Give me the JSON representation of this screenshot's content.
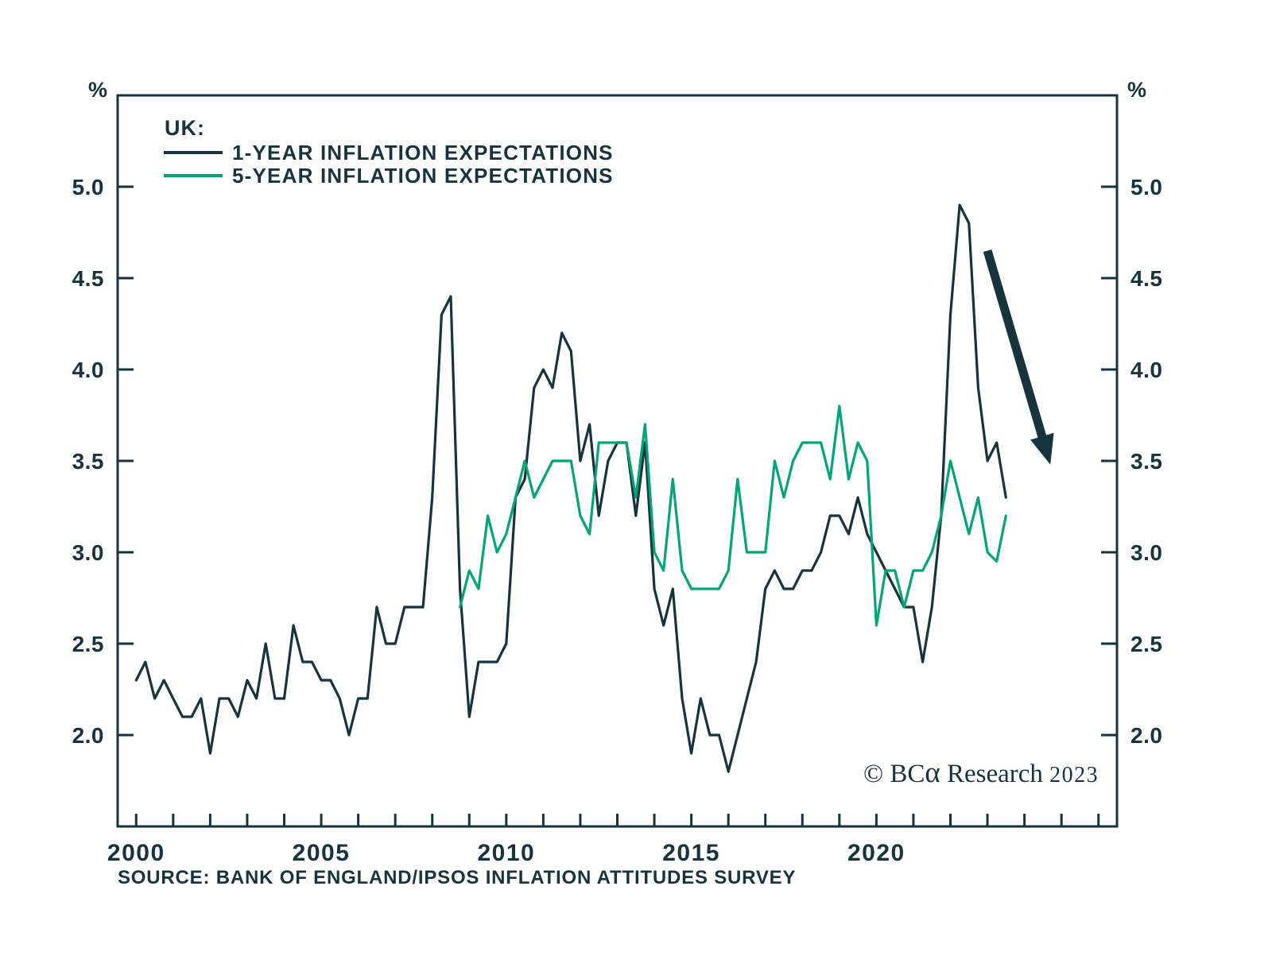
{
  "colors": {
    "ink": "#16333e",
    "green": "#00a478"
  },
  "chart_data": {
    "type": "line",
    "title": "UK:",
    "y_unit": "%",
    "grid": false,
    "legend_position": "top-left-inside",
    "xlim": [
      1999.5,
      2026.5
    ],
    "ylim": [
      1.5,
      5.5
    ],
    "yticks": [
      {
        "label": "2.0",
        "value": 2.0
      },
      {
        "label": "2.5",
        "value": 2.5
      },
      {
        "label": "3.0",
        "value": 3.0
      },
      {
        "label": "3.5",
        "value": 3.5
      },
      {
        "label": "4.0",
        "value": 4.0
      },
      {
        "label": "4.5",
        "value": 4.5
      },
      {
        "label": "5.0",
        "value": 5.0
      }
    ],
    "xticks_minor": {
      "start": 2000,
      "end": 2026,
      "step": 1
    },
    "xticks_labeled": [
      {
        "label": "2000",
        "value": 2000
      },
      {
        "label": "2005",
        "value": 2005
      },
      {
        "label": "2010",
        "value": 2010
      },
      {
        "label": "2015",
        "value": 2015
      },
      {
        "label": "2020",
        "value": 2020
      }
    ],
    "series": [
      {
        "name": "1-YEAR INFLATION EXPECTATIONS",
        "color": "#16333e",
        "points": [
          [
            2000.0,
            2.3
          ],
          [
            2000.25,
            2.4
          ],
          [
            2000.5,
            2.2
          ],
          [
            2000.75,
            2.3
          ],
          [
            2001.0,
            2.2
          ],
          [
            2001.25,
            2.1
          ],
          [
            2001.5,
            2.1
          ],
          [
            2001.75,
            2.2
          ],
          [
            2002.0,
            1.9
          ],
          [
            2002.25,
            2.2
          ],
          [
            2002.5,
            2.2
          ],
          [
            2002.75,
            2.1
          ],
          [
            2003.0,
            2.3
          ],
          [
            2003.25,
            2.2
          ],
          [
            2003.5,
            2.5
          ],
          [
            2003.75,
            2.2
          ],
          [
            2004.0,
            2.2
          ],
          [
            2004.25,
            2.6
          ],
          [
            2004.5,
            2.4
          ],
          [
            2004.75,
            2.4
          ],
          [
            2005.0,
            2.3
          ],
          [
            2005.25,
            2.3
          ],
          [
            2005.5,
            2.2
          ],
          [
            2005.75,
            2.0
          ],
          [
            2006.0,
            2.2
          ],
          [
            2006.25,
            2.2
          ],
          [
            2006.5,
            2.7
          ],
          [
            2006.75,
            2.5
          ],
          [
            2007.0,
            2.5
          ],
          [
            2007.25,
            2.7
          ],
          [
            2007.5,
            2.7
          ],
          [
            2007.75,
            2.7
          ],
          [
            2008.0,
            3.3
          ],
          [
            2008.25,
            4.3
          ],
          [
            2008.5,
            4.4
          ],
          [
            2008.75,
            2.8
          ],
          [
            2009.0,
            2.1
          ],
          [
            2009.25,
            2.4
          ],
          [
            2009.5,
            2.4
          ],
          [
            2009.75,
            2.4
          ],
          [
            2010.0,
            2.5
          ],
          [
            2010.25,
            3.3
          ],
          [
            2010.5,
            3.4
          ],
          [
            2010.75,
            3.9
          ],
          [
            2011.0,
            4.0
          ],
          [
            2011.25,
            3.9
          ],
          [
            2011.5,
            4.2
          ],
          [
            2011.75,
            4.1
          ],
          [
            2012.0,
            3.5
          ],
          [
            2012.25,
            3.7
          ],
          [
            2012.5,
            3.2
          ],
          [
            2012.75,
            3.5
          ],
          [
            2013.0,
            3.6
          ],
          [
            2013.25,
            3.6
          ],
          [
            2013.5,
            3.2
          ],
          [
            2013.75,
            3.6
          ],
          [
            2014.0,
            2.8
          ],
          [
            2014.25,
            2.6
          ],
          [
            2014.5,
            2.8
          ],
          [
            2014.75,
            2.2
          ],
          [
            2015.0,
            1.9
          ],
          [
            2015.25,
            2.2
          ],
          [
            2015.5,
            2.0
          ],
          [
            2015.75,
            2.0
          ],
          [
            2016.0,
            1.8
          ],
          [
            2016.25,
            2.0
          ],
          [
            2016.5,
            2.2
          ],
          [
            2016.75,
            2.4
          ],
          [
            2017.0,
            2.8
          ],
          [
            2017.25,
            2.9
          ],
          [
            2017.5,
            2.8
          ],
          [
            2017.75,
            2.8
          ],
          [
            2018.0,
            2.9
          ],
          [
            2018.25,
            2.9
          ],
          [
            2018.5,
            3.0
          ],
          [
            2018.75,
            3.2
          ],
          [
            2019.0,
            3.2
          ],
          [
            2019.25,
            3.1
          ],
          [
            2019.5,
            3.3
          ],
          [
            2019.75,
            3.1
          ],
          [
            2020.0,
            3.0
          ],
          [
            2020.25,
            2.9
          ],
          [
            2020.5,
            2.8
          ],
          [
            2020.75,
            2.7
          ],
          [
            2021.0,
            2.7
          ],
          [
            2021.25,
            2.4
          ],
          [
            2021.5,
            2.7
          ],
          [
            2021.75,
            3.2
          ],
          [
            2022.0,
            4.3
          ],
          [
            2022.25,
            4.9
          ],
          [
            2022.5,
            4.8
          ],
          [
            2022.75,
            3.9
          ],
          [
            2023.0,
            3.5
          ],
          [
            2023.25,
            3.6
          ],
          [
            2023.5,
            3.3
          ]
        ]
      },
      {
        "name": "5-YEAR INFLATION EXPECTATIONS",
        "color": "#00a478",
        "points": [
          [
            2008.75,
            2.7
          ],
          [
            2009.0,
            2.9
          ],
          [
            2009.25,
            2.8
          ],
          [
            2009.5,
            3.2
          ],
          [
            2009.75,
            3.0
          ],
          [
            2010.0,
            3.1
          ],
          [
            2010.25,
            3.3
          ],
          [
            2010.5,
            3.5
          ],
          [
            2010.75,
            3.3
          ],
          [
            2011.0,
            3.4
          ],
          [
            2011.25,
            3.5
          ],
          [
            2011.5,
            3.5
          ],
          [
            2011.75,
            3.5
          ],
          [
            2012.0,
            3.2
          ],
          [
            2012.25,
            3.1
          ],
          [
            2012.5,
            3.6
          ],
          [
            2012.75,
            3.6
          ],
          [
            2013.0,
            3.6
          ],
          [
            2013.25,
            3.6
          ],
          [
            2013.5,
            3.3
          ],
          [
            2013.75,
            3.7
          ],
          [
            2014.0,
            3.0
          ],
          [
            2014.25,
            2.9
          ],
          [
            2014.5,
            3.4
          ],
          [
            2014.75,
            2.9
          ],
          [
            2015.0,
            2.8
          ],
          [
            2015.25,
            2.8
          ],
          [
            2015.5,
            2.8
          ],
          [
            2015.75,
            2.8
          ],
          [
            2016.0,
            2.9
          ],
          [
            2016.25,
            3.4
          ],
          [
            2016.5,
            3.0
          ],
          [
            2016.75,
            3.0
          ],
          [
            2017.0,
            3.0
          ],
          [
            2017.25,
            3.5
          ],
          [
            2017.5,
            3.3
          ],
          [
            2017.75,
            3.5
          ],
          [
            2018.0,
            3.6
          ],
          [
            2018.25,
            3.6
          ],
          [
            2018.5,
            3.6
          ],
          [
            2018.75,
            3.4
          ],
          [
            2019.0,
            3.8
          ],
          [
            2019.25,
            3.4
          ],
          [
            2019.5,
            3.6
          ],
          [
            2019.75,
            3.5
          ],
          [
            2020.0,
            2.6
          ],
          [
            2020.25,
            2.9
          ],
          [
            2020.5,
            2.9
          ],
          [
            2020.75,
            2.7
          ],
          [
            2021.0,
            2.9
          ],
          [
            2021.25,
            2.9
          ],
          [
            2021.5,
            3.0
          ],
          [
            2021.75,
            3.2
          ],
          [
            2022.0,
            3.5
          ],
          [
            2022.25,
            3.3
          ],
          [
            2022.5,
            3.1
          ],
          [
            2022.75,
            3.3
          ],
          [
            2023.0,
            3.0
          ],
          [
            2023.25,
            2.95
          ],
          [
            2023.5,
            3.2
          ]
        ]
      }
    ],
    "annotations": [
      {
        "type": "arrow",
        "from": [
          2023.0,
          4.65
        ],
        "to": [
          2024.7,
          3.48
        ],
        "color": "#16333e"
      }
    ]
  },
  "branding": {
    "prefix": "© BC",
    "alpha": "α",
    "suffix": " Research ",
    "year": "2023"
  },
  "source": {
    "text": "SOURCE: BANK OF ENGLAND/IPSOS INFLATION ATTITUDES SURVEY"
  }
}
